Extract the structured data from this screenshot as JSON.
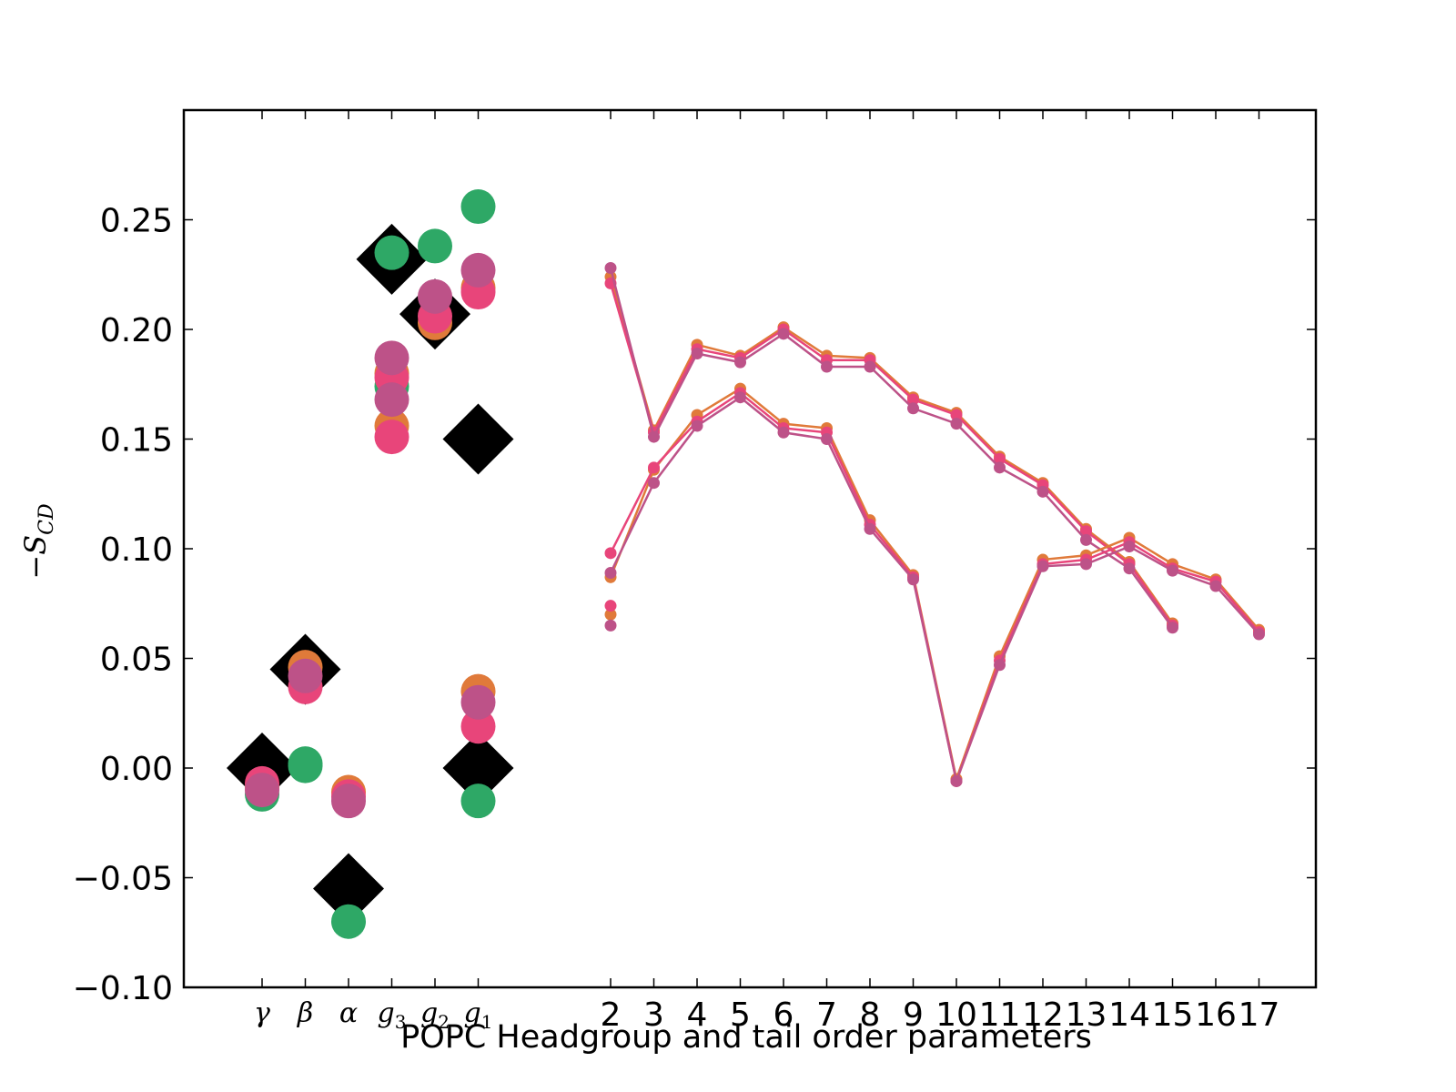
{
  "chart_data": {
    "type": "scatter",
    "title": "",
    "xlabel": "POPC Headgroup and tail order parameters",
    "ylabel": "−S",
    "ylabel_subscript": "CD",
    "ylim": [
      -0.1,
      0.3
    ],
    "yticks": [
      -0.1,
      -0.05,
      0.0,
      0.05,
      0.1,
      0.15,
      0.2,
      0.25
    ],
    "ytick_labels": [
      "−0.10",
      "−0.05",
      "0.00",
      "0.05",
      "0.10",
      "0.15",
      "0.20",
      "0.25"
    ],
    "headgroup_categories": [
      {
        "base": "γ",
        "sub": ""
      },
      {
        "base": "β",
        "sub": ""
      },
      {
        "base": "α",
        "sub": ""
      },
      {
        "base": "g",
        "sub": "3"
      },
      {
        "base": "g",
        "sub": "2"
      },
      {
        "base": "g",
        "sub": "1"
      }
    ],
    "tail_ticks": [
      "2",
      "3",
      "4",
      "5",
      "6",
      "7",
      "8",
      "9",
      "10",
      "11",
      "12",
      "13",
      "14",
      "15",
      "16",
      "17"
    ],
    "grid": false,
    "colors": {
      "experiment": "#000000",
      "green": "#2ea866",
      "orange": "#e07a3a",
      "pink": "#e8457a",
      "purple": "#bd5288"
    },
    "experiment_points": [
      {
        "cat": 0,
        "y": 0.0
      },
      {
        "cat": 1,
        "y": 0.045
      },
      {
        "cat": 2,
        "y": -0.055
      },
      {
        "cat": 3,
        "y": 0.232
      },
      {
        "cat": 4,
        "y": 0.207
      },
      {
        "cat": 5,
        "y": 0.15
      },
      {
        "cat": 5,
        "y": 0.0
      }
    ],
    "headgroup_series": [
      {
        "color": "green",
        "points": [
          [
            0,
            -0.012
          ],
          [
            1,
            0.001
          ],
          [
            1,
            0.002
          ],
          [
            2,
            -0.07
          ],
          [
            3,
            0.235
          ],
          [
            3,
            0.174
          ],
          [
            4,
            0.238
          ],
          [
            5,
            0.256
          ],
          [
            5,
            -0.015
          ]
        ]
      },
      {
        "color": "orange",
        "points": [
          [
            0,
            -0.009
          ],
          [
            1,
            0.046
          ],
          [
            2,
            -0.011
          ],
          [
            3,
            0.156
          ],
          [
            3,
            0.18
          ],
          [
            4,
            0.203
          ],
          [
            5,
            0.219
          ],
          [
            5,
            0.035
          ]
        ]
      },
      {
        "color": "pink",
        "points": [
          [
            0,
            -0.007
          ],
          [
            1,
            0.037
          ],
          [
            2,
            -0.013
          ],
          [
            3,
            0.151
          ],
          [
            3,
            0.178
          ],
          [
            4,
            0.206
          ],
          [
            5,
            0.217
          ],
          [
            5,
            0.019
          ]
        ]
      },
      {
        "color": "purple",
        "points": [
          [
            0,
            -0.01
          ],
          [
            1,
            0.042
          ],
          [
            2,
            -0.015
          ],
          [
            3,
            0.187
          ],
          [
            3,
            0.168
          ],
          [
            4,
            0.215
          ],
          [
            5,
            0.227
          ],
          [
            5,
            0.03
          ]
        ]
      }
    ],
    "tail_series": [
      {
        "color": "orange",
        "x": [
          2,
          3,
          4,
          5,
          6,
          7,
          8,
          9,
          10,
          11,
          12,
          13,
          14,
          15
        ],
        "y": [
          0.224,
          0.154,
          0.193,
          0.188,
          0.201,
          0.188,
          0.187,
          0.169,
          0.162,
          0.142,
          0.13,
          0.109,
          0.094,
          0.066
        ]
      },
      {
        "color": "pink",
        "x": [
          2,
          3,
          4,
          5,
          6,
          7,
          8,
          9,
          10,
          11,
          12,
          13,
          14,
          15
        ],
        "y": [
          0.221,
          0.153,
          0.191,
          0.187,
          0.2,
          0.186,
          0.186,
          0.168,
          0.161,
          0.141,
          0.129,
          0.108,
          0.093,
          0.065
        ]
      },
      {
        "color": "purple",
        "x": [
          2,
          3,
          4,
          5,
          6,
          7,
          8,
          9,
          10,
          11,
          12,
          13,
          14,
          15
        ],
        "y": [
          0.228,
          0.151,
          0.189,
          0.185,
          0.198,
          0.183,
          0.183,
          0.164,
          0.157,
          0.137,
          0.126,
          0.104,
          0.091,
          0.064
        ]
      },
      {
        "color": "orange",
        "x": [
          2,
          3,
          4,
          5,
          6,
          7,
          8,
          9,
          10,
          11,
          12,
          13,
          14,
          15,
          16,
          17
        ],
        "y": [
          0.087,
          0.136,
          0.161,
          0.173,
          0.157,
          0.155,
          0.113,
          0.088,
          -0.005,
          0.051,
          0.095,
          0.097,
          0.105,
          0.093,
          0.086,
          0.063
        ]
      },
      {
        "color": "pink",
        "x": [
          2,
          3,
          4,
          5,
          6,
          7,
          8,
          9,
          10,
          11,
          12,
          13,
          14,
          15,
          16,
          17
        ],
        "y": [
          0.098,
          0.137,
          0.158,
          0.171,
          0.155,
          0.153,
          0.111,
          0.087,
          -0.006,
          0.049,
          0.093,
          0.095,
          0.103,
          0.091,
          0.085,
          0.062
        ]
      },
      {
        "color": "purple",
        "x": [
          2,
          3,
          4,
          5,
          6,
          7,
          8,
          9,
          10,
          11,
          12,
          13,
          14,
          15,
          16,
          17
        ],
        "y": [
          0.089,
          0.13,
          0.156,
          0.169,
          0.153,
          0.15,
          0.109,
          0.086,
          -0.006,
          0.047,
          0.092,
          0.093,
          0.101,
          0.09,
          0.083,
          0.061
        ]
      },
      {
        "color": "orange",
        "x": [
          2
        ],
        "y": [
          0.07
        ]
      },
      {
        "color": "pink",
        "x": [
          2
        ],
        "y": [
          0.074
        ]
      },
      {
        "color": "purple",
        "x": [
          2
        ],
        "y": [
          0.065
        ]
      }
    ]
  }
}
